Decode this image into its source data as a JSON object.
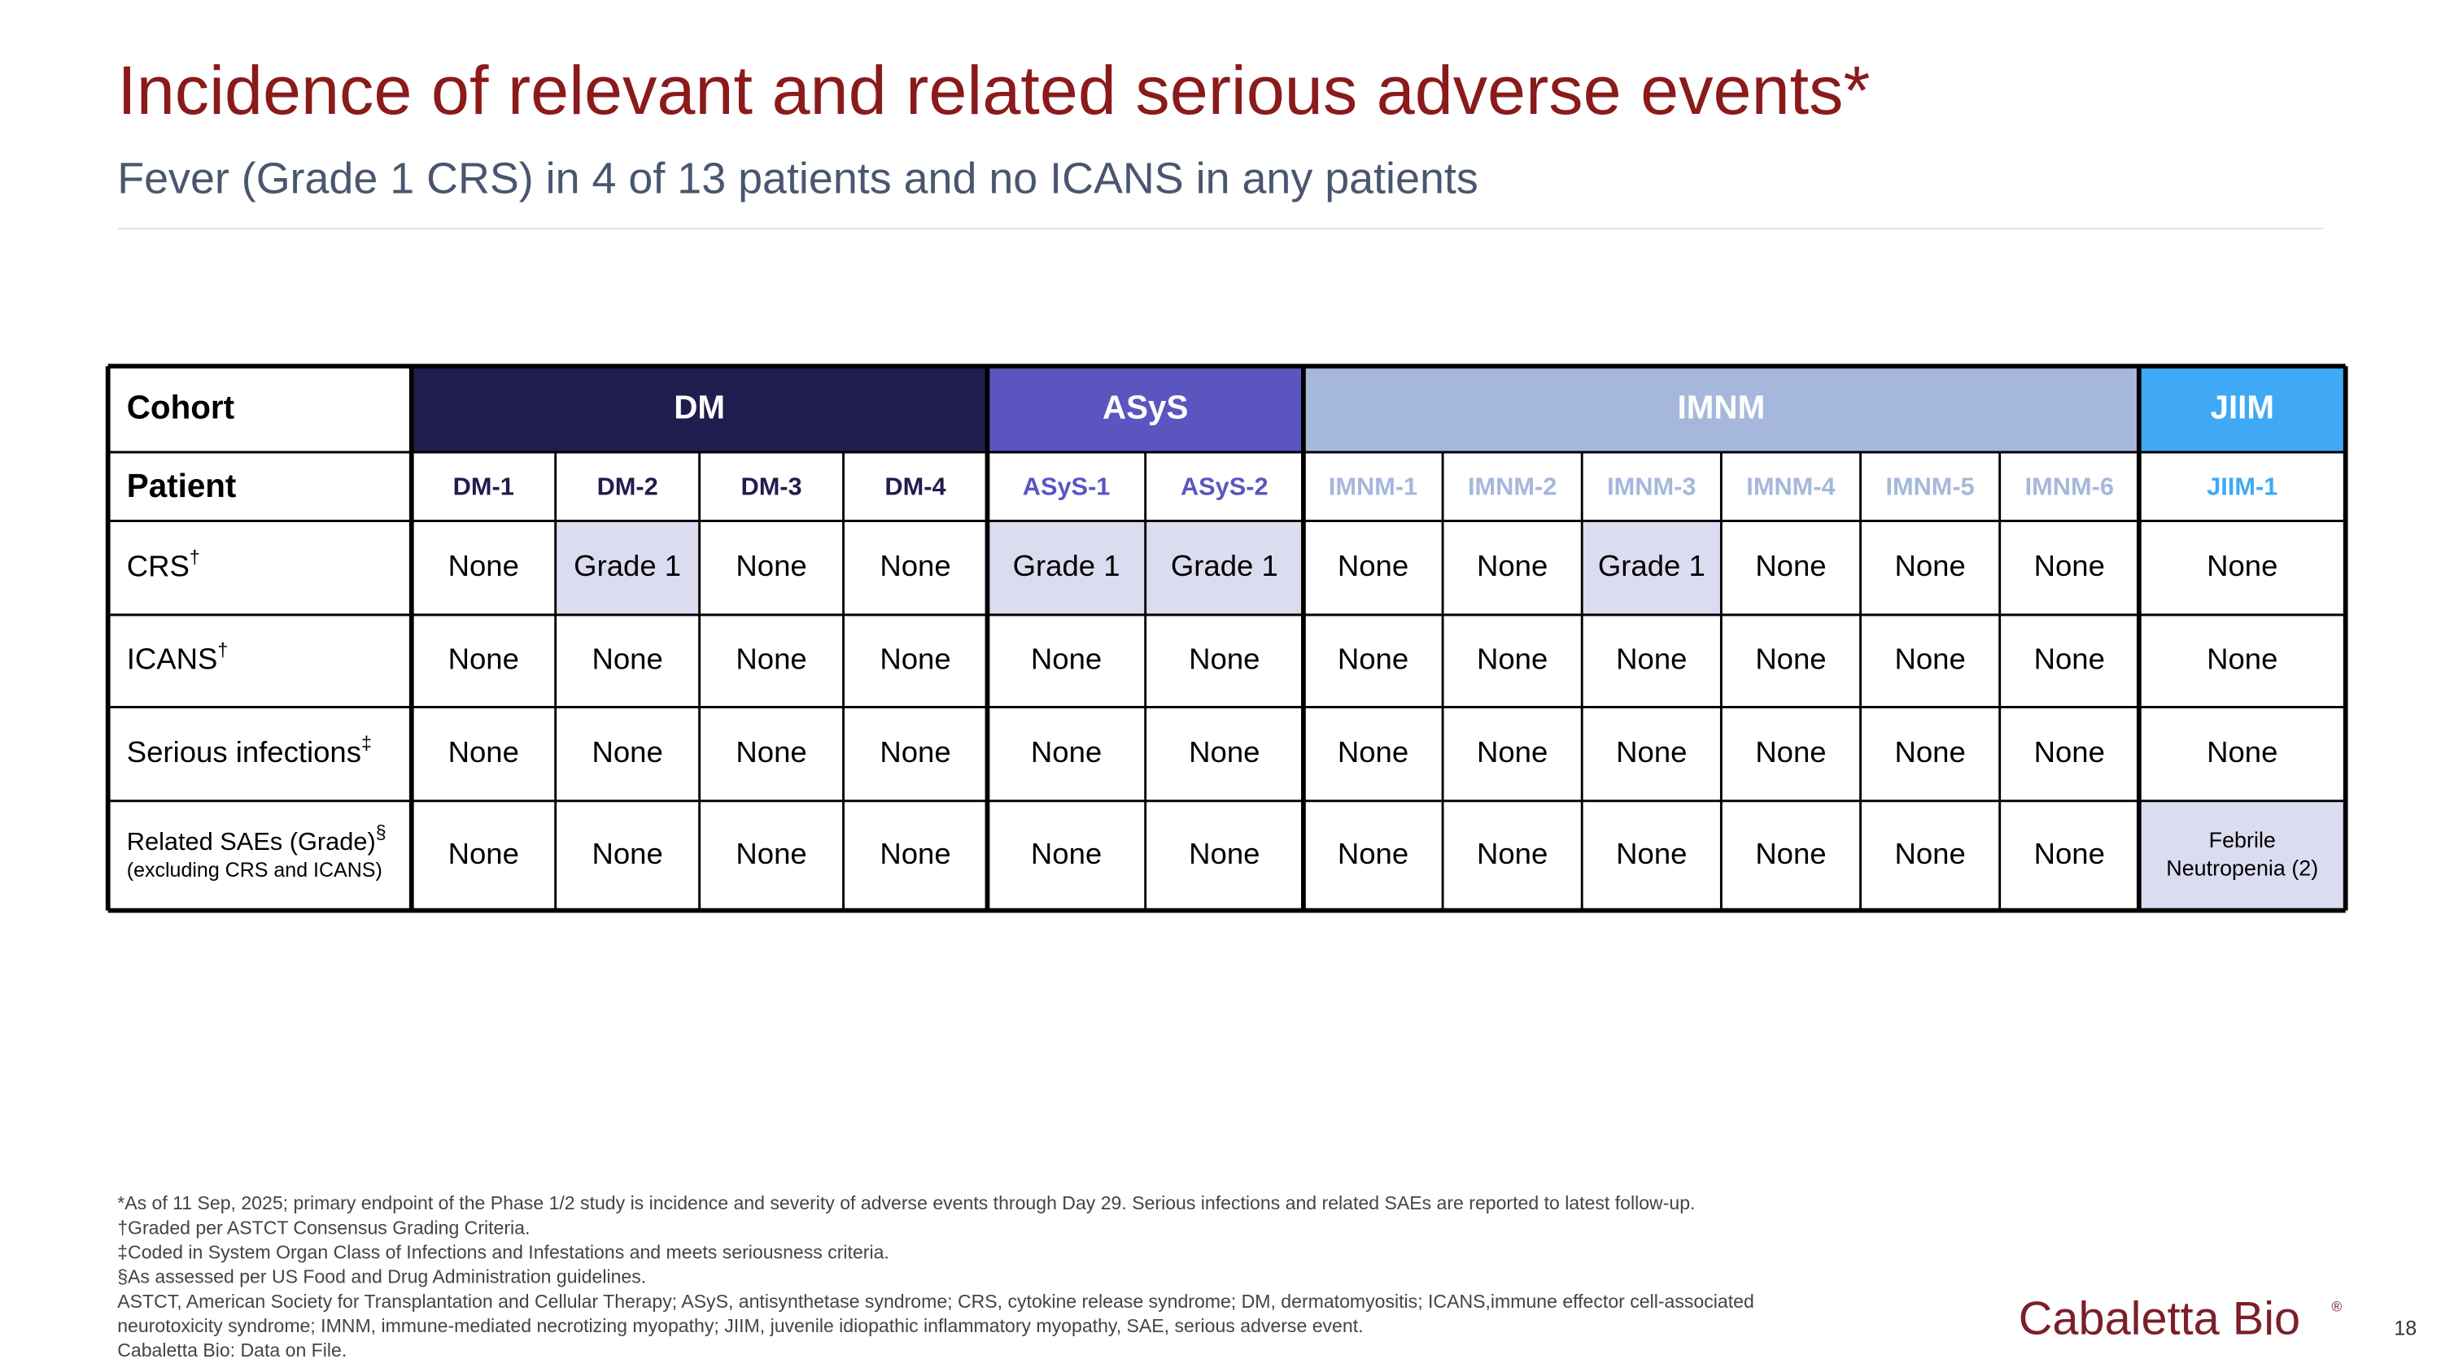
{
  "header": {
    "title": "Incidence of relevant and related serious adverse events*",
    "subtitle": "Fever (Grade 1 CRS) in 4 of 13 patients and no ICANS in any patients"
  },
  "table": {
    "cohort_label": "Cohort",
    "patient_label": "Patient",
    "highlight_color": "#dcdcf0",
    "cohorts": [
      {
        "name": "DM",
        "color": "#211d4e",
        "text_color": "#ffffff",
        "patients": [
          "DM-1",
          "DM-2",
          "DM-3",
          "DM-4"
        ]
      },
      {
        "name": "ASyS",
        "color": "#5b55c0",
        "text_color": "#ffffff",
        "patients": [
          "ASyS-1",
          "ASyS-2"
        ]
      },
      {
        "name": "IMNM",
        "color": "#a5b8dc",
        "text_color": "#ffffff",
        "patients": [
          "IMNM-1",
          "IMNM-2",
          "IMNM-3",
          "IMNM-4",
          "IMNM-5",
          "IMNM-6"
        ]
      },
      {
        "name": "JIIM",
        "color": "#3fa9f5",
        "text_color": "#ffffff",
        "patients": [
          "JIIM-1"
        ]
      }
    ],
    "rows": [
      {
        "label": "CRS",
        "mark": "†",
        "cells": [
          "None",
          "Grade 1",
          "None",
          "None",
          "Grade 1",
          "Grade 1",
          "None",
          "None",
          "Grade 1",
          "None",
          "None",
          "None",
          "None"
        ]
      },
      {
        "label": "ICANS",
        "mark": "†",
        "cells": [
          "None",
          "None",
          "None",
          "None",
          "None",
          "None",
          "None",
          "None",
          "None",
          "None",
          "None",
          "None",
          "None"
        ]
      },
      {
        "label": "Serious infections",
        "mark": "‡",
        "cells": [
          "None",
          "None",
          "None",
          "None",
          "None",
          "None",
          "None",
          "None",
          "None",
          "None",
          "None",
          "None",
          "None"
        ]
      },
      {
        "label": "Related SAEs (Grade)",
        "mark": "§",
        "note": "(excluding CRS and ICANS)",
        "cells": [
          "None",
          "None",
          "None",
          "None",
          "None",
          "None",
          "None",
          "None",
          "None",
          "None",
          "None",
          "None",
          [
            "Febrile",
            "Neutropenia (2)"
          ]
        ]
      }
    ]
  },
  "footnotes": [
    "*As of 11 Sep, 2025; primary endpoint of the Phase 1/2 study is incidence and severity of adverse events through Day 29. Serious infections and related SAEs are reported to latest follow-up.",
    "†Graded per ASTCT Consensus Grading Criteria.",
    "‡Coded in System Organ Class of Infections and Infestations and meets seriousness criteria.",
    "§As assessed per US Food and Drug Administration guidelines.",
    "ASTCT, American Society for Transplantation and Cellular Therapy; ASyS, antisynthetase syndrome; CRS, cytokine release syndrome; DM, dermatomyositis; ICANS,immune effector cell-associated",
    "neurotoxicity syndrome; IMNM, immune-mediated necrotizing myopathy; JIIM, juvenile idiopathic inflammatory myopathy, SAE, serious adverse event.",
    "Cabaletta Bio: Data on File."
  ],
  "logo": {
    "name": "Cabaletta Bio",
    "mark": "®"
  },
  "page_number": "18"
}
